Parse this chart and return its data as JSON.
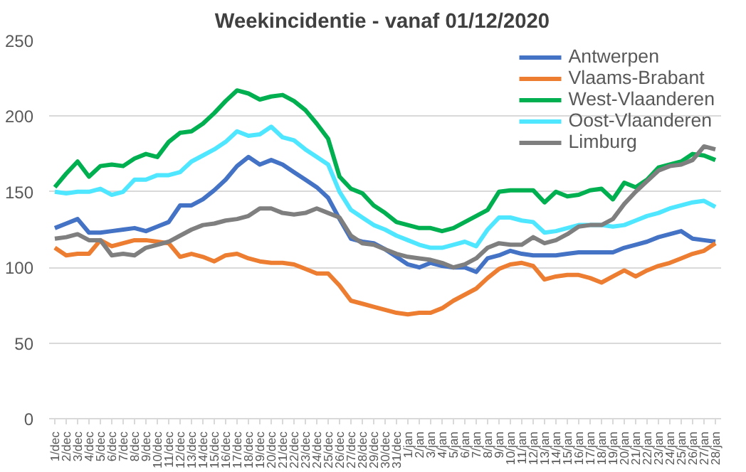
{
  "chart_data": {
    "type": "line",
    "title": "Weekincidentie  - vanaf 01/12/2020",
    "categories": [
      "1/dec",
      "2/dec",
      "3/dec",
      "4/dec",
      "5/dec",
      "6/dec",
      "7/dec",
      "8/dec",
      "9/dec",
      "10/dec",
      "11/dec",
      "12/dec",
      "13/dec",
      "14/dec",
      "15/dec",
      "16/dec",
      "17/dec",
      "18/dec",
      "19/dec",
      "20/dec",
      "21/dec",
      "22/dec",
      "23/dec",
      "24/dec",
      "25/dec",
      "26/dec",
      "27/dec",
      "28/dec",
      "29/dec",
      "30/dec",
      "31/dec",
      "1/jan",
      "2/jan",
      "3/jan",
      "4/jan",
      "5/jan",
      "6/jan",
      "7/jan",
      "8/jan",
      "9/jan",
      "10/jan",
      "11/jan",
      "12/jan",
      "13/jan",
      "14/jan",
      "15/jan",
      "16/jan",
      "17/jan",
      "18/jan",
      "19/jan",
      "20/jan",
      "21/jan",
      "22/jan",
      "23/jan",
      "24/jan",
      "25/jan",
      "26/jan",
      "27/jan",
      "28/jan"
    ],
    "series": [
      {
        "name": "Antwerpen",
        "color": "#4472c4",
        "values": [
          126,
          129,
          132,
          123,
          123,
          124,
          125,
          126,
          124,
          127,
          130,
          141,
          141,
          145,
          151,
          158,
          167,
          173,
          168,
          171,
          168,
          163,
          158,
          153,
          146,
          132,
          119,
          117,
          116,
          112,
          107,
          102,
          100,
          103,
          101,
          100,
          100,
          97,
          106,
          108,
          111,
          109,
          108,
          108,
          108,
          109,
          110,
          110,
          110,
          110,
          113,
          115,
          117,
          120,
          122,
          124,
          119,
          118,
          117
        ]
      },
      {
        "name": "Vlaams-Brabant",
        "color": "#ed7d31",
        "values": [
          113,
          108,
          109,
          109,
          118,
          114,
          116,
          118,
          118,
          117,
          116,
          107,
          109,
          107,
          104,
          108,
          109,
          106,
          104,
          103,
          103,
          102,
          99,
          96,
          96,
          88,
          78,
          76,
          74,
          72,
          70,
          69,
          70,
          70,
          73,
          78,
          82,
          86,
          93,
          99,
          102,
          103,
          101,
          92,
          94,
          95,
          95,
          93,
          90,
          94,
          98,
          94,
          98,
          101,
          103,
          106,
          109,
          111,
          116
        ]
      },
      {
        "name": "West-Vlaanderen",
        "color": "#00b050",
        "values": [
          153,
          162,
          170,
          160,
          167,
          168,
          167,
          172,
          175,
          173,
          183,
          189,
          190,
          195,
          202,
          210,
          217,
          215,
          211,
          213,
          214,
          210,
          204,
          195,
          185,
          160,
          152,
          149,
          141,
          136,
          130,
          128,
          126,
          126,
          124,
          126,
          130,
          134,
          138,
          150,
          151,
          151,
          151,
          143,
          150,
          147,
          148,
          151,
          152,
          145,
          156,
          153,
          158,
          166,
          168,
          170,
          175,
          174,
          171
        ]
      },
      {
        "name": "Oost-Vlaanderen",
        "color": "#4fe6ff",
        "values": [
          150,
          149,
          150,
          150,
          152,
          148,
          150,
          158,
          158,
          161,
          161,
          163,
          170,
          174,
          178,
          183,
          190,
          187,
          188,
          193,
          186,
          184,
          178,
          173,
          168,
          150,
          138,
          133,
          128,
          125,
          121,
          118,
          115,
          113,
          113,
          115,
          117,
          114,
          125,
          133,
          133,
          131,
          130,
          123,
          124,
          126,
          128,
          128,
          128,
          127,
          128,
          131,
          134,
          136,
          139,
          141,
          143,
          144,
          140
        ]
      },
      {
        "name": "Limburg",
        "color": "#7f7f7f",
        "values": [
          119,
          120,
          122,
          118,
          118,
          108,
          109,
          108,
          113,
          115,
          117,
          121,
          125,
          128,
          129,
          131,
          132,
          134,
          139,
          139,
          136,
          135,
          136,
          139,
          136,
          133,
          121,
          116,
          115,
          112,
          109,
          107,
          106,
          105,
          103,
          100,
          102,
          106,
          113,
          116,
          115,
          115,
          120,
          116,
          118,
          122,
          127,
          128,
          128,
          132,
          142,
          150,
          157,
          164,
          167,
          168,
          171,
          180,
          178
        ]
      }
    ],
    "ylim": [
      0,
      250
    ],
    "yticks": [
      0,
      50,
      100,
      150,
      200,
      250
    ],
    "grid": "y",
    "legend": "top right",
    "line_style": "solid"
  }
}
